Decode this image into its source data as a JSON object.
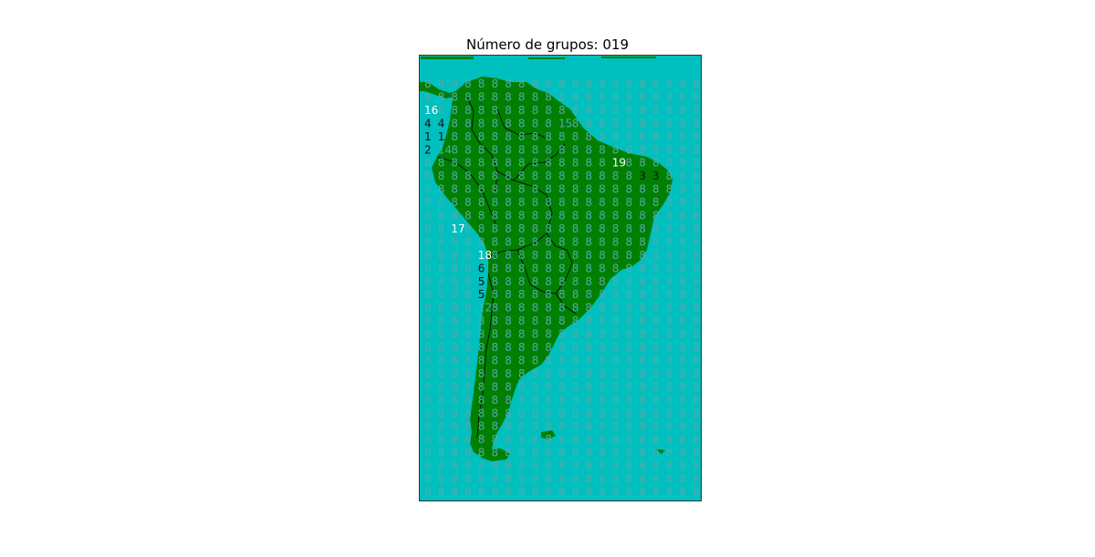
{
  "title": "Número de grupos: 019",
  "colors": {
    "ocean": "#00bfbf",
    "land": "#007f00",
    "border": "#000000",
    "frame": "#333333",
    "label_dim": "#55aaaa",
    "label_highlight": "#ffffff",
    "label_dark": "#111111"
  },
  "grid": {
    "cols": 21,
    "rows": 33,
    "default_label": "8"
  },
  "labels": [
    {
      "col": 0,
      "row": 2,
      "text": "16",
      "style": "highlight"
    },
    {
      "col": 0,
      "row": 3,
      "text": "4",
      "style": "dark"
    },
    {
      "col": 1,
      "row": 3,
      "text": "4",
      "style": "dark"
    },
    {
      "col": 0,
      "row": 4,
      "text": "1",
      "style": "dark"
    },
    {
      "col": 1,
      "row": 4,
      "text": "1",
      "style": "dark"
    },
    {
      "col": 0,
      "row": 5,
      "text": "2",
      "style": "dark"
    },
    {
      "col": 1,
      "row": 5,
      "text": "14",
      "style": "light"
    },
    {
      "col": 10,
      "row": 3,
      "text": "15",
      "style": "light"
    },
    {
      "col": 14,
      "row": 6,
      "text": "19",
      "style": "highlight"
    },
    {
      "col": 16,
      "row": 7,
      "text": "3",
      "style": "dark"
    },
    {
      "col": 17,
      "row": 7,
      "text": "3",
      "style": "dark"
    },
    {
      "col": 2,
      "row": 11,
      "text": "17",
      "style": "highlight"
    },
    {
      "col": 4,
      "row": 13,
      "text": "18",
      "style": "highlight"
    },
    {
      "col": 4,
      "row": 14,
      "text": "6",
      "style": "dark"
    },
    {
      "col": 4,
      "row": 15,
      "text": "5",
      "style": "dark"
    },
    {
      "col": 4,
      "row": 16,
      "text": "5",
      "style": "dark"
    },
    {
      "col": 4,
      "row": 17,
      "text": "12",
      "style": "light"
    }
  ]
}
